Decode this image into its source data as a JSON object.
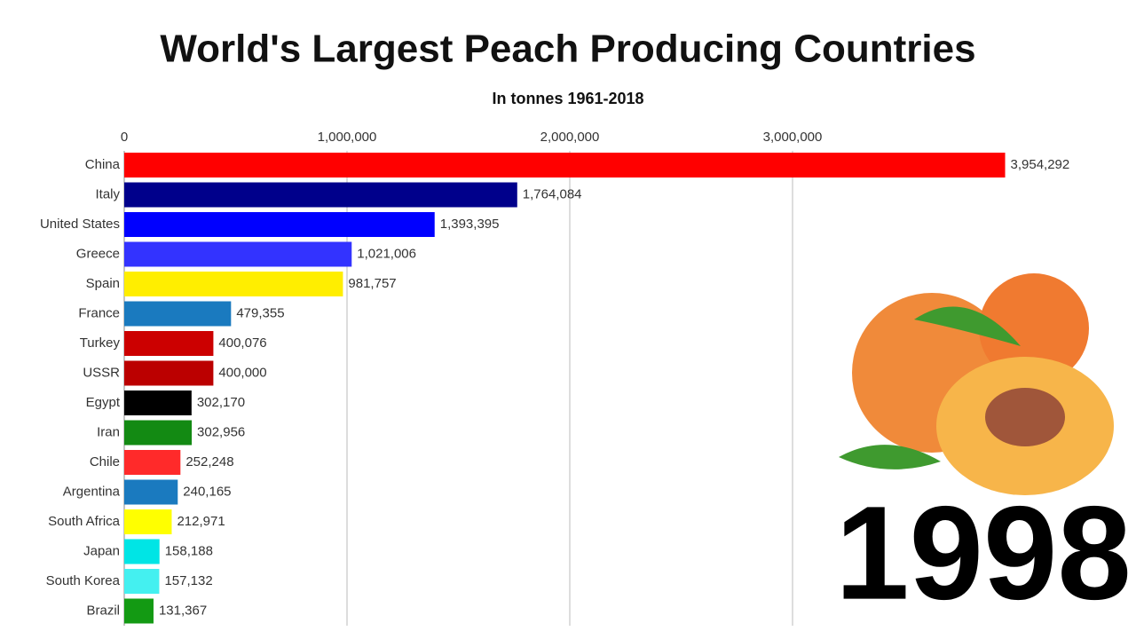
{
  "chart_data": {
    "type": "bar",
    "orientation": "horizontal",
    "title": "World's Largest Peach Producing Countries",
    "subtitle": "In tonnes 1961-2018",
    "annotation": "1998",
    "categories": [
      "China",
      "Italy",
      "United States",
      "Greece",
      "Spain",
      "France",
      "Turkey",
      "USSR",
      "Egypt",
      "Iran",
      "Chile",
      "Argentina",
      "South Africa",
      "Japan",
      "South Korea",
      "Brazil"
    ],
    "values": [
      3954292,
      1764084,
      1393395,
      1021006,
      981757,
      479355,
      400076,
      400000,
      302170,
      302956,
      252248,
      240165,
      212971,
      158188,
      157132,
      131367
    ],
    "value_labels": [
      "3,954,292",
      "1,764,084",
      "1,393,395",
      "1,021,006",
      "981,757",
      "479,355",
      "400,076",
      "400,000",
      "302,170",
      "302,956",
      "252,248",
      "240,165",
      "212,971",
      "158,188",
      "157,132",
      "131,367"
    ],
    "colors": [
      "#ff0000",
      "#00008b",
      "#0000ff",
      "#3333ff",
      "#ffee00",
      "#1a7abf",
      "#cc0000",
      "#bb0000",
      "#000000",
      "#138a13",
      "#ff2a2a",
      "#1a7abf",
      "#ffff00",
      "#00e5e5",
      "#44f0f0",
      "#139a13"
    ],
    "xlim": [
      0,
      4500000
    ],
    "xticks": [
      0,
      {
        "value": 1000000,
        "label": "1,000,000"
      },
      {
        "value": 2000000,
        "label": "2,000,000"
      },
      {
        "value": 3000000,
        "label": "3,000,000"
      }
    ],
    "grid": true
  }
}
